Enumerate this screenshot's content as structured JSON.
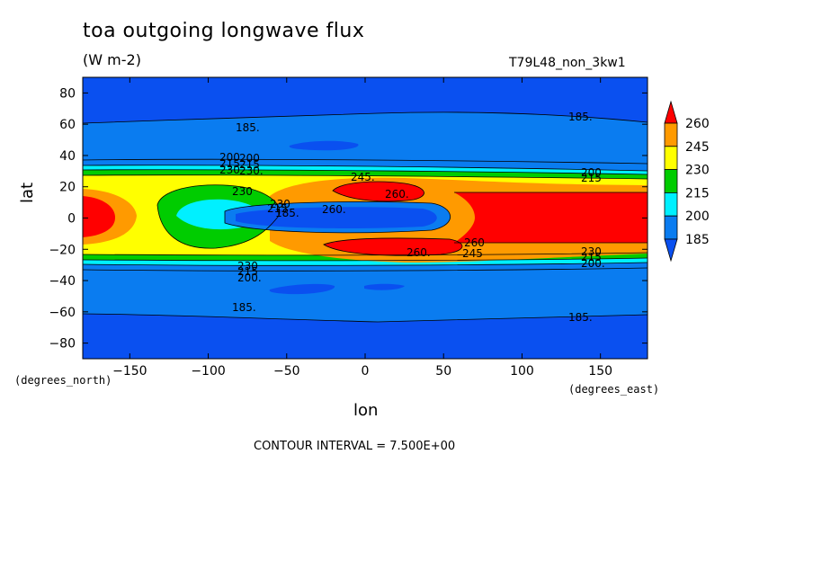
{
  "figure": {
    "title": "toa outgoing longwave flux",
    "units": "(W m-2)",
    "run_id": "T79L48_non_3kw1",
    "contour_interval": "CONTOUR INTERVAL = 7.500E+00",
    "lat_unit_note": "(degrees_north)",
    "lon_unit_note": "(degrees_east)"
  },
  "chart_data": {
    "type": "heatmap",
    "title": "toa outgoing longwave flux",
    "xlabel": "lon",
    "ylabel": "lat",
    "xlim": [
      -180,
      180
    ],
    "ylim": [
      -90,
      90
    ],
    "xticks": [
      -150,
      -100,
      -50,
      0,
      50,
      100,
      150
    ],
    "yticks": [
      80,
      60,
      40,
      20,
      0,
      -20,
      -40,
      -60,
      -80
    ],
    "colorbar": {
      "levels": [
        185,
        200,
        215,
        230,
        245,
        260
      ],
      "labels": [
        "260",
        "245",
        "230",
        "215",
        "200",
        "185"
      ],
      "colors": [
        "#ff0000",
        "#ff9a00",
        "#ffff00",
        "#00cc00",
        "#00f0ff",
        "#0a7cf0",
        "#0a50f0"
      ]
    },
    "contour_labels": [
      "185.",
      "185.",
      "185.",
      "185.",
      "200",
      "215",
      "230.",
      "200",
      "215",
      "230",
      "245.",
      "230",
      "260.",
      "215",
      "185.",
      "260.",
      "260",
      "245",
      "260.",
      "230",
      "215",
      "200.",
      "230",
      "215",
      "200.",
      "200",
      "215",
      "230"
    ]
  }
}
